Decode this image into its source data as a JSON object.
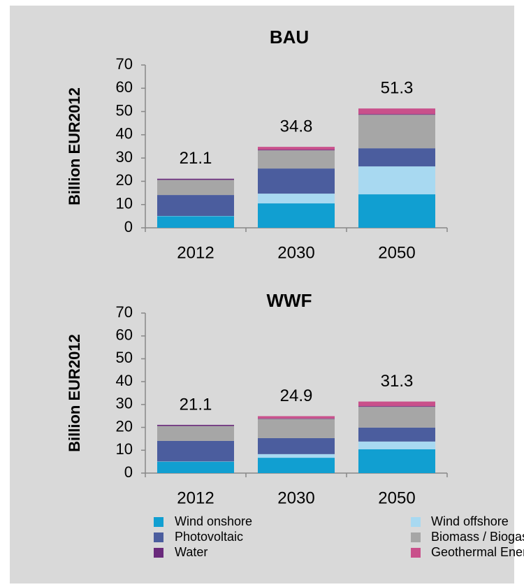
{
  "legend": [
    {
      "name": "Wind onshore",
      "color": "#119fd1"
    },
    {
      "name": "Wind offshore",
      "color": "#a8d9f1"
    },
    {
      "name": "Photovoltaic",
      "color": "#4b5d9e"
    },
    {
      "name": "Biomass / Biogas",
      "color": "#a6a6a6"
    },
    {
      "name": "Water",
      "color": "#6a2a7c"
    },
    {
      "name": "Geothermal Energy",
      "color": "#c9508b"
    }
  ],
  "chart_data": [
    {
      "type": "stacked_bar",
      "title": "BAU",
      "y_label": "Billion  EUR2012",
      "categories": [
        "2012",
        "2030",
        "2050"
      ],
      "totals": [
        21.1,
        34.8,
        51.3
      ],
      "ylim": [
        0,
        70
      ],
      "yticks": [
        0,
        10,
        20,
        30,
        40,
        50,
        60,
        70
      ],
      "series": [
        {
          "values": [
            5,
            10.5,
            14.4
          ]
        },
        {
          "values": [
            0.1,
            4.2,
            12
          ]
        },
        {
          "values": [
            9,
            10.8,
            7.8
          ]
        },
        {
          "values": [
            6.5,
            7.8,
            14.4
          ]
        },
        {
          "values": [
            0.5,
            0.3,
            0.3
          ]
        },
        {
          "values": [
            0,
            1.2,
            2.4
          ]
        }
      ]
    },
    {
      "type": "stacked_bar",
      "title": "WWF",
      "y_label": "Billion  EUR2012",
      "categories": [
        "2012",
        "2030",
        "2050"
      ],
      "totals": [
        21.1,
        24.9,
        31.3
      ],
      "ylim": [
        0,
        70
      ],
      "yticks": [
        0,
        10,
        20,
        30,
        40,
        50,
        60,
        70
      ],
      "series": [
        {
          "values": [
            5,
            6.7,
            10.4
          ]
        },
        {
          "values": [
            0.1,
            1.6,
            3.4
          ]
        },
        {
          "values": [
            9,
            7,
            6.1
          ]
        },
        {
          "values": [
            6.5,
            8.4,
            9.1
          ]
        },
        {
          "values": [
            0.5,
            0.2,
            0.3
          ]
        },
        {
          "values": [
            0,
            1.0,
            2.0
          ]
        }
      ]
    }
  ]
}
